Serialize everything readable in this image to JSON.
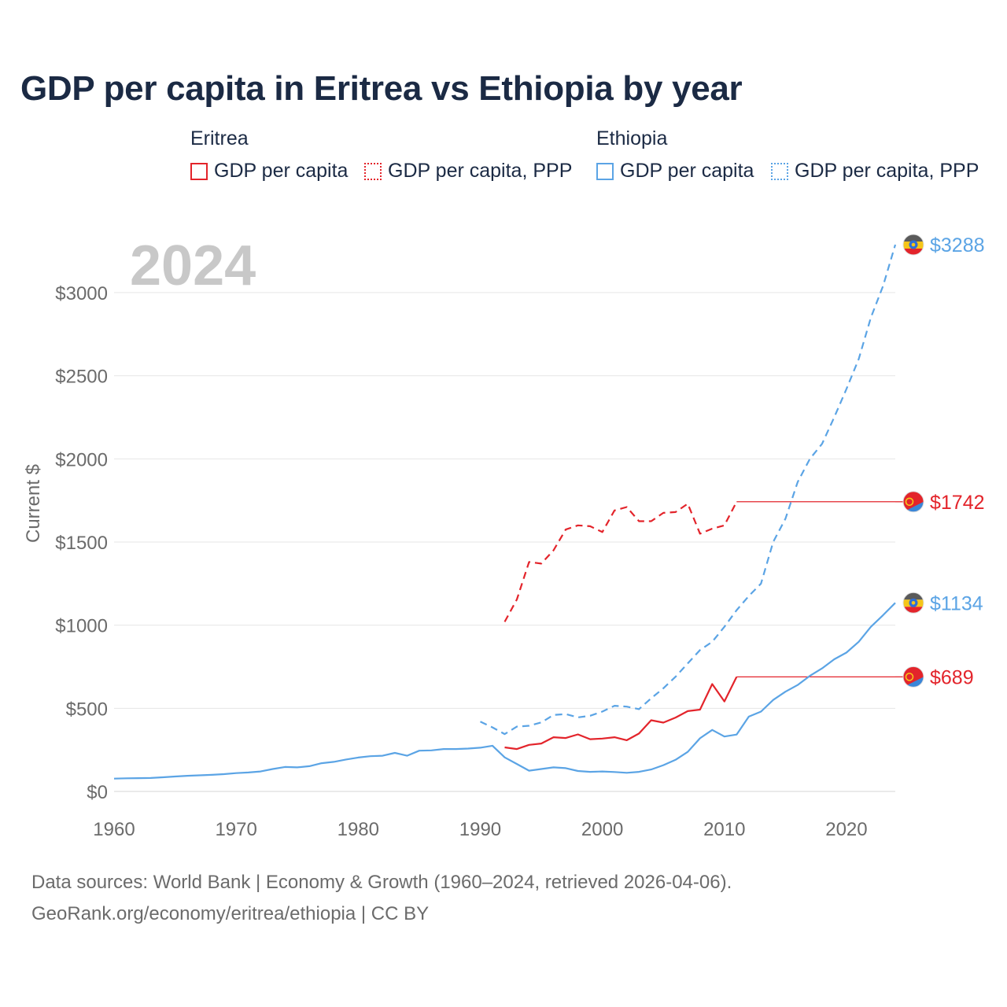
{
  "title": "GDP per capita in Eritrea vs Ethiopia by year",
  "legend": {
    "groups": [
      {
        "name": "Eritrea",
        "color": "#e3242b",
        "items": [
          "GDP per capita",
          "GDP per capita, PPP"
        ]
      },
      {
        "name": "Ethiopia",
        "color": "#5ba4e5",
        "items": [
          "GDP per capita",
          "GDP per capita, PPP"
        ]
      }
    ]
  },
  "year_label": "2024",
  "footer": {
    "line1": "Data sources: World Bank | Economy & Growth (1960–2024, retrieved 2026-04-06).",
    "line2": "GeoRank.org/economy/eritrea/ethiopia | CC BY"
  },
  "chart_data": {
    "type": "line",
    "title": "GDP per capita in Eritrea vs Ethiopia by year",
    "xlabel": "",
    "ylabel": "Current $",
    "xlim": [
      1960,
      2024
    ],
    "ylim": [
      0,
      3288
    ],
    "x_ticks": [
      1960,
      1970,
      1980,
      1990,
      2000,
      2010,
      2020
    ],
    "y_ticks": [
      0,
      500,
      1000,
      1500,
      2000,
      2500,
      3000
    ],
    "y_tick_labels": [
      "$0",
      "$500",
      "$1000",
      "$1500",
      "$2000",
      "$2500",
      "$3000"
    ],
    "grid": true,
    "series": [
      {
        "name": "Eritrea GDP per capita",
        "country": "Eritrea",
        "style": "solid",
        "color": "#e3242b",
        "x": [
          1992,
          1993,
          1994,
          1995,
          1996,
          1997,
          1998,
          1999,
          2000,
          2001,
          2002,
          2003,
          2004,
          2005,
          2006,
          2007,
          2008,
          2009,
          2010,
          2011
        ],
        "values": [
          265,
          255,
          280,
          288,
          326,
          321,
          343,
          314,
          318,
          326,
          308,
          348,
          428,
          414,
          444,
          483,
          492,
          646,
          541,
          689
        ],
        "last_value": 689,
        "end_label": "$689"
      },
      {
        "name": "Eritrea GDP per capita, PPP",
        "country": "Eritrea",
        "style": "dashed",
        "color": "#e3242b",
        "x": [
          1992,
          1993,
          1994,
          1995,
          1996,
          1997,
          1998,
          1999,
          2000,
          2001,
          2002,
          2003,
          2004,
          2005,
          2006,
          2007,
          2008,
          2009,
          2010,
          2011
        ],
        "values": [
          1020,
          1155,
          1380,
          1370,
          1450,
          1575,
          1600,
          1595,
          1560,
          1690,
          1710,
          1625,
          1625,
          1675,
          1680,
          1730,
          1550,
          1580,
          1600,
          1742
        ],
        "last_value": 1742,
        "end_label": "$1742"
      },
      {
        "name": "Ethiopia GDP per capita",
        "country": "Ethiopia",
        "style": "solid",
        "color": "#5ba4e5",
        "x": [
          1960,
          1961,
          1962,
          1963,
          1964,
          1965,
          1966,
          1967,
          1968,
          1969,
          1970,
          1971,
          1972,
          1973,
          1974,
          1975,
          1976,
          1977,
          1978,
          1979,
          1980,
          1981,
          1982,
          1983,
          1984,
          1985,
          1986,
          1987,
          1988,
          1989,
          1990,
          1991,
          1992,
          1993,
          1994,
          1995,
          1996,
          1997,
          1998,
          1999,
          2000,
          2001,
          2002,
          2003,
          2004,
          2005,
          2006,
          2007,
          2008,
          2009,
          2010,
          2011,
          2012,
          2013,
          2014,
          2015,
          2016,
          2017,
          2018,
          2019,
          2020,
          2021,
          2022,
          2023,
          2024
        ],
        "values": [
          77,
          79,
          80,
          81,
          85,
          90,
          94,
          97,
          100,
          104,
          110,
          114,
          120,
          135,
          147,
          145,
          152,
          170,
          178,
          192,
          204,
          212,
          215,
          232,
          215,
          245,
          247,
          255,
          255,
          258,
          263,
          275,
          205,
          165,
          125,
          135,
          145,
          140,
          123,
          118,
          120,
          117,
          112,
          118,
          132,
          158,
          190,
          238,
          320,
          370,
          330,
          342,
          450,
          480,
          550,
          600,
          640,
          695,
          740,
          795,
          835,
          900,
          990,
          1060,
          1134
        ],
        "last_value": 1134,
        "end_label": "$1134"
      },
      {
        "name": "Ethiopia GDP per capita, PPP",
        "country": "Ethiopia",
        "style": "dashed",
        "color": "#5ba4e5",
        "x": [
          1990,
          1991,
          1992,
          1993,
          1994,
          1995,
          1996,
          1997,
          1998,
          1999,
          2000,
          2001,
          2002,
          2003,
          2004,
          2005,
          2006,
          2007,
          2008,
          2009,
          2010,
          2011,
          2012,
          2013,
          2014,
          2015,
          2016,
          2017,
          2018,
          2019,
          2020,
          2021,
          2022,
          2023,
          2024
        ],
        "values": [
          420,
          385,
          345,
          390,
          395,
          415,
          460,
          465,
          445,
          455,
          480,
          515,
          510,
          495,
          560,
          620,
          690,
          770,
          850,
          900,
          990,
          1090,
          1175,
          1250,
          1500,
          1640,
          1860,
          2000,
          2090,
          2250,
          2420,
          2600,
          2850,
          3040,
          3288
        ],
        "last_value": 3288,
        "end_label": "$3288"
      }
    ]
  }
}
